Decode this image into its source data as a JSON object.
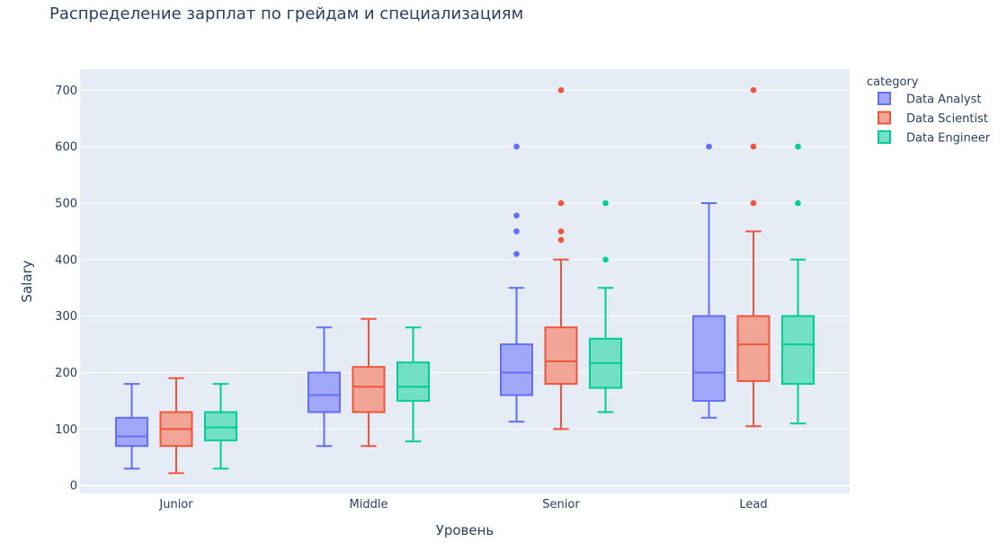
{
  "chart_data": {
    "type": "box",
    "title": "Распределение зарплат по грейдам и специализациям",
    "xlabel": "Уровень",
    "ylabel": "Salary",
    "ylim": [
      -14,
      737
    ],
    "yticks": [
      0,
      100,
      200,
      300,
      400,
      500,
      600,
      700
    ],
    "grid": true,
    "categories": [
      "Junior",
      "Middle",
      "Senior",
      "Lead"
    ],
    "legend": {
      "title": "category",
      "placement": "right-top"
    },
    "series": [
      {
        "name": "Data Analyst",
        "color": "#636efa",
        "fill": "#a1a8f9",
        "boxes": [
          {
            "min": 30,
            "q1": 70,
            "median": 87,
            "q3": 120,
            "max": 180,
            "outliers": []
          },
          {
            "min": 70,
            "q1": 130,
            "median": 160,
            "q3": 200,
            "max": 280,
            "outliers": []
          },
          {
            "min": 113,
            "q1": 160,
            "median": 200,
            "q3": 250,
            "max": 350,
            "outliers": [
              410,
              450,
              478,
              600
            ]
          },
          {
            "min": 120,
            "q1": 150,
            "median": 200,
            "q3": 300,
            "max": 500,
            "outliers": [
              600
            ]
          }
        ]
      },
      {
        "name": "Data Scientist",
        "color": "#ef553b",
        "fill": "#f0a597",
        "boxes": [
          {
            "min": 22,
            "q1": 70,
            "median": 100,
            "q3": 130,
            "max": 190,
            "outliers": []
          },
          {
            "min": 70,
            "q1": 130,
            "median": 175,
            "q3": 210,
            "max": 295,
            "outliers": []
          },
          {
            "min": 100,
            "q1": 180,
            "median": 220,
            "q3": 280,
            "max": 400,
            "outliers": [
              435,
              450,
              500,
              700
            ]
          },
          {
            "min": 105,
            "q1": 185,
            "median": 250,
            "q3": 300,
            "max": 450,
            "outliers": [
              500,
              600,
              700
            ]
          }
        ]
      },
      {
        "name": "Data Engineer",
        "color": "#00cc96",
        "fill": "#73dfc4",
        "boxes": [
          {
            "min": 30,
            "q1": 80,
            "median": 103,
            "q3": 130,
            "max": 180,
            "outliers": []
          },
          {
            "min": 78,
            "q1": 150,
            "median": 175,
            "q3": 218,
            "max": 280,
            "outliers": []
          },
          {
            "min": 130,
            "q1": 173,
            "median": 217,
            "q3": 260,
            "max": 350,
            "outliers": [
              400,
              500
            ]
          },
          {
            "min": 110,
            "q1": 180,
            "median": 250,
            "q3": 300,
            "max": 400,
            "outliers": [
              500,
              600
            ]
          }
        ]
      }
    ]
  }
}
